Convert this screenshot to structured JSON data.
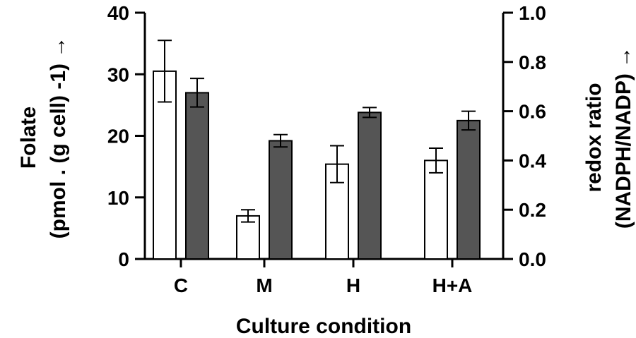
{
  "chart_data": {
    "type": "bar",
    "categories": [
      "C",
      "M",
      "H",
      "H+A"
    ],
    "xlabel": "Culture condition",
    "series": [
      {
        "axis": "left",
        "fill": "#ffffff",
        "values": [
          30.5,
          7.0,
          15.4,
          16.0
        ],
        "errors": [
          5.0,
          1.0,
          3.0,
          2.0
        ]
      },
      {
        "axis": "right",
        "fill": "#555555",
        "values": [
          0.675,
          0.48,
          0.595,
          0.562
        ],
        "errors": [
          0.058,
          0.025,
          0.02,
          0.038
        ]
      }
    ],
    "left_axis": {
      "label_line1": "Folate",
      "label_line2": "(pmol . (g cell) -1) →",
      "ylim": [
        0,
        40
      ],
      "ticks": [
        "0",
        "10",
        "20",
        "30",
        "40"
      ]
    },
    "right_axis": {
      "label_line1": "redox ratio",
      "label_line2": "(NADPH/NADP) →",
      "ylim": [
        0,
        1.0
      ],
      "ticks": [
        "0.0",
        "0.2",
        "0.4",
        "0.6",
        "0.8",
        "1.0"
      ]
    }
  }
}
